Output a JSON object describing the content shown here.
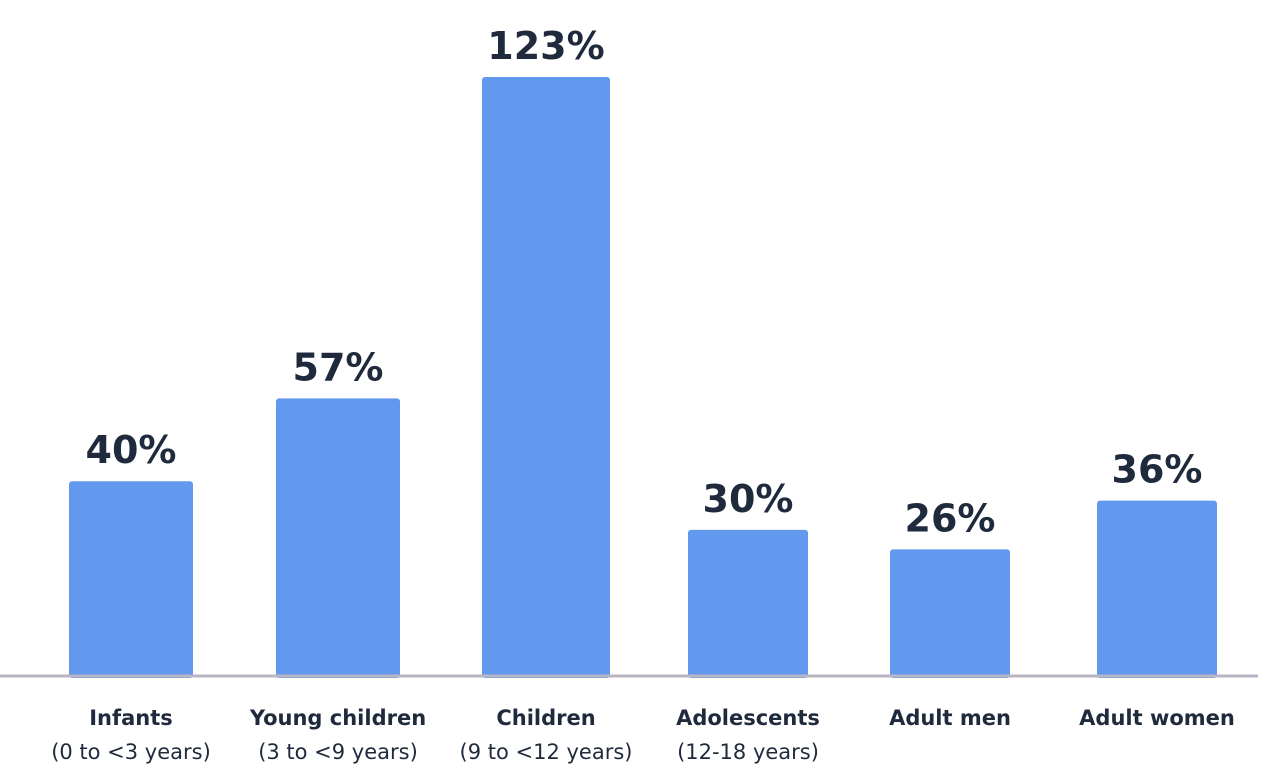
{
  "chart_data": {
    "type": "bar",
    "categories": [
      {
        "name": "Infants",
        "sub": "(0 to <3 years)"
      },
      {
        "name": "Young children",
        "sub": "(3 to <9 years)"
      },
      {
        "name": "Children",
        "sub": "(9 to <12 years)"
      },
      {
        "name": "Adolescents",
        "sub": "(12-18 years)"
      },
      {
        "name": "Adult men",
        "sub": ""
      },
      {
        "name": "Adult women",
        "sub": ""
      }
    ],
    "values": [
      40,
      57,
      123,
      30,
      26,
      36
    ],
    "value_labels": [
      "40%",
      "57%",
      "123%",
      "30%",
      "26%",
      "36%"
    ],
    "unit": "%",
    "title": "",
    "xlabel": "",
    "ylabel": "",
    "ylim": [
      0,
      123
    ],
    "grid": false,
    "legend": "none",
    "colors": {
      "bar": "#6298ee",
      "axis": "#b9b5c2",
      "text": "#1f2a3c"
    }
  }
}
